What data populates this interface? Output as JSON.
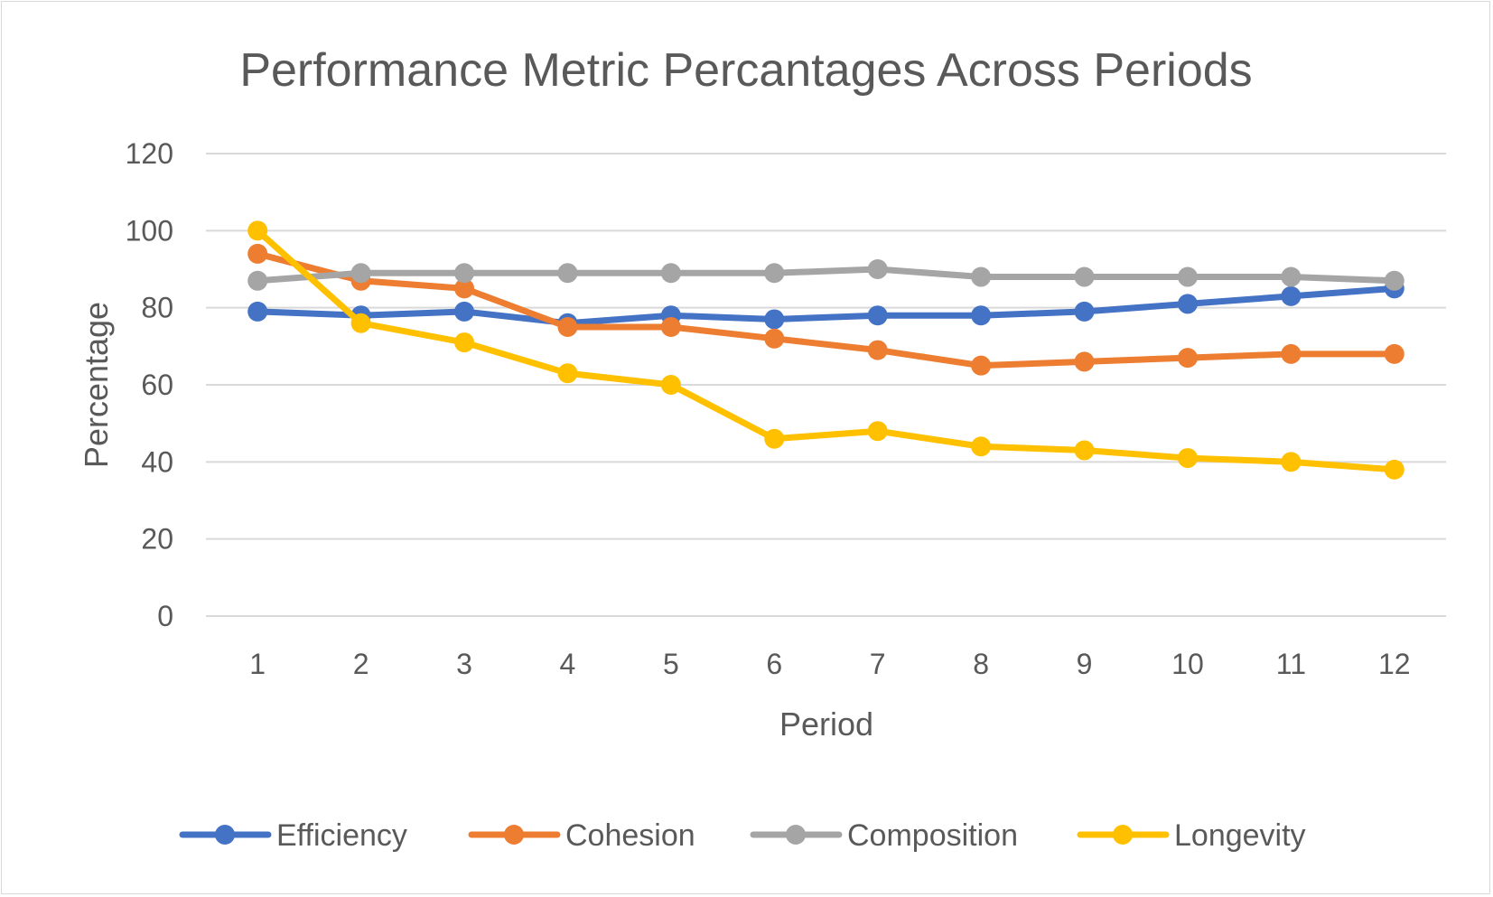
{
  "chart_data": {
    "type": "line",
    "title": "Performance Metric Percantages Across Periods",
    "xlabel": "Period",
    "ylabel": "Percentage",
    "x": [
      1,
      2,
      3,
      4,
      5,
      6,
      7,
      8,
      9,
      10,
      11,
      12
    ],
    "ylim": [
      0,
      120
    ],
    "yticks": [
      0,
      20,
      40,
      60,
      80,
      100,
      120
    ],
    "grid": true,
    "legend_position": "bottom",
    "series": [
      {
        "name": "Efficiency",
        "color": "#4472C4",
        "values": [
          79,
          78,
          79,
          76,
          78,
          77,
          78,
          78,
          79,
          81,
          83,
          85
        ]
      },
      {
        "name": "Cohesion",
        "color": "#ED7D31",
        "values": [
          94,
          87,
          85,
          75,
          75,
          72,
          69,
          65,
          66,
          67,
          68,
          68
        ]
      },
      {
        "name": "Composition",
        "color": "#A5A5A5",
        "values": [
          87,
          89,
          89,
          89,
          89,
          89,
          90,
          88,
          88,
          88,
          88,
          87
        ]
      },
      {
        "name": "Longevity",
        "color": "#FFC000",
        "values": [
          100,
          76,
          71,
          63,
          60,
          46,
          48,
          44,
          43,
          41,
          40,
          38
        ]
      }
    ]
  }
}
